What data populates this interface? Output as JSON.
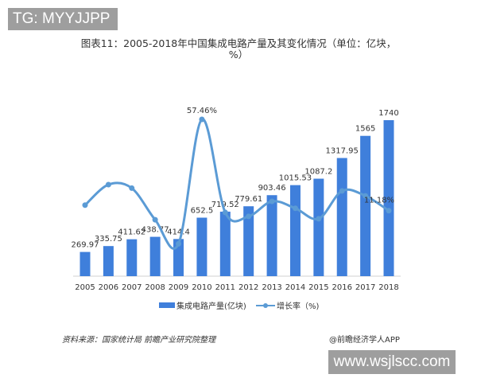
{
  "overlay_top": "TG: MYYJJPP",
  "overlay_bottom": "www.wsjlscc.com",
  "chart_data": {
    "type": "bar+line",
    "title": "图表11：2005-2018年中国集成电路产量及其变化情况（单位：亿块，%）",
    "categories": [
      "2005",
      "2006",
      "2007",
      "2008",
      "2009",
      "2010",
      "2011",
      "2012",
      "2013",
      "2014",
      "2015",
      "2016",
      "2017",
      "2018"
    ],
    "series": [
      {
        "name": "集成电路产量(亿块)",
        "type": "bar",
        "axis": "left",
        "values": [
          269.97,
          335.75,
          411.62,
          438.77,
          414.4,
          652.5,
          719.52,
          779.61,
          903.46,
          1015.53,
          1087.2,
          1317.95,
          1565,
          1740
        ],
        "labels": [
          "269.97",
          "335.75",
          "411.62",
          "438.77",
          "414.4",
          "652.5",
          "719.52",
          "779.61",
          "903.46",
          "1015.53",
          "1087.2",
          "1317.95",
          "1565",
          "1740"
        ]
      },
      {
        "name": "增长率（%)",
        "type": "line",
        "axis": "right",
        "smooth": true,
        "values": [
          14,
          24.4,
          22.6,
          6.6,
          -5.6,
          57.46,
          10.3,
          8.3,
          15.9,
          12.4,
          7.1,
          21.2,
          18.7,
          11.18
        ],
        "labels": {
          "5": "57.46%",
          "13": "11.18%"
        }
      }
    ],
    "ylim_left": [
      0,
      1740
    ],
    "ylim_right": [
      -22,
      57.46
    ],
    "colors": {
      "bar": "#3f7fdb",
      "line": "#5b9bd5"
    },
    "grid": false,
    "legend": "bottom"
  },
  "source": "资料来源：国家统计局 前瞻产业研究院整理",
  "brand": "@前瞻经济学人APP"
}
